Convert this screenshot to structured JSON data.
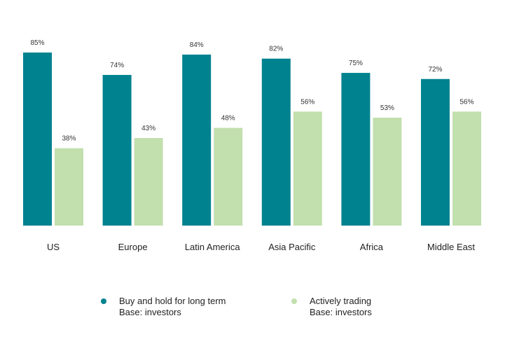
{
  "chart_data": {
    "type": "bar",
    "categories": [
      "US",
      "Europe",
      "Latin America",
      "Asia Pacific",
      "Africa",
      "Middle East"
    ],
    "series": [
      {
        "name": "Buy and hold for long term",
        "base": "Base: investors",
        "color": "#00828f",
        "values": [
          85,
          74,
          84,
          82,
          75,
          72
        ],
        "labels": [
          "85%",
          "74%",
          "84%",
          "82%",
          "75%",
          "72%"
        ]
      },
      {
        "name": "Actively trading",
        "base": "Base: investors",
        "color": "#c2dfae",
        "values": [
          38,
          43,
          48,
          56,
          53,
          56
        ],
        "labels": [
          "38%",
          "43%",
          "48%",
          "56%",
          "53%",
          "56%"
        ]
      }
    ],
    "ylim": [
      0,
      100
    ],
    "grid": false,
    "legend_position": "bottom"
  }
}
